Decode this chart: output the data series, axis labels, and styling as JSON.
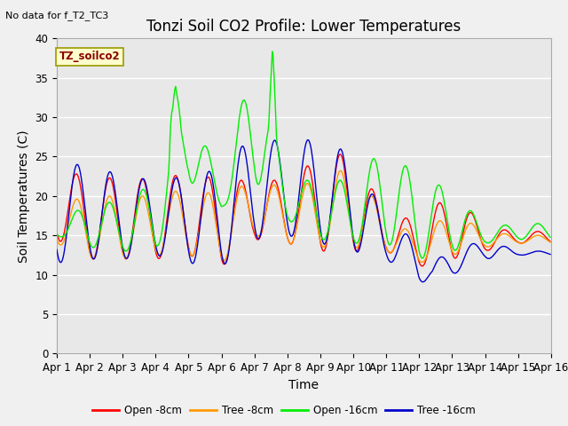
{
  "title": "Tonzi Soil CO2 Profile: Lower Temperatures",
  "subtitle": "No data for f_T2_TC3",
  "xlabel": "Time",
  "ylabel": "Soil Temperatures (C)",
  "annotation": "TZ_soilco2",
  "ylim": [
    0,
    40
  ],
  "yticks": [
    0,
    5,
    10,
    15,
    20,
    25,
    30,
    35,
    40
  ],
  "xtick_labels": [
    "Apr 1",
    "Apr 2",
    "Apr 3",
    "Apr 4",
    "Apr 5",
    "Apr 6",
    "Apr 7",
    "Apr 8",
    "Apr 9",
    "Apr 10",
    "Apr 11",
    "Apr 12",
    "Apr 13",
    "Apr 14",
    "Apr 15",
    "Apr 16"
  ],
  "legend_labels": [
    "Open -8cm",
    "Tree -8cm",
    "Open -16cm",
    "Tree -16cm"
  ],
  "line_colors": [
    "#ff0000",
    "#ff9900",
    "#00ee00",
    "#0000cc"
  ],
  "bg_color": "#e8e8e8",
  "plot_bg_color": "#e8e8e8",
  "fig_bg_color": "#f0f0f0",
  "grid_color": "#ffffff",
  "title_fontsize": 12,
  "axis_label_fontsize": 10,
  "tick_fontsize": 8.5
}
